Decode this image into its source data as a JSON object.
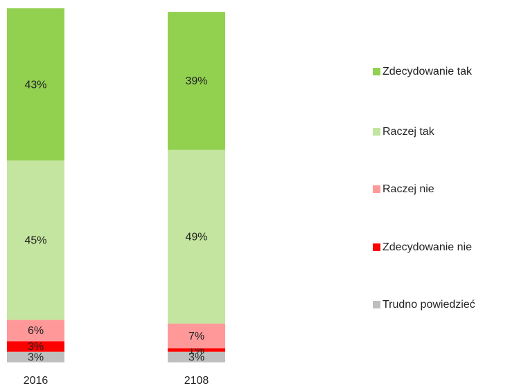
{
  "chart_data": {
    "type": "stacked_bar",
    "categories": [
      "2016",
      "2108"
    ],
    "series": [
      {
        "name": "Zdecydowanie tak",
        "color": "#92d050",
        "values": [
          43,
          39
        ],
        "value_labels": [
          "43%",
          "39%"
        ]
      },
      {
        "name": "Raczej tak",
        "color": "#c4e59f",
        "values": [
          45,
          49
        ],
        "value_labels": [
          "45%",
          "49%"
        ]
      },
      {
        "name": "Raczej nie",
        "color": "#ff9999",
        "values": [
          6,
          7
        ],
        "value_labels": [
          "6%",
          "7%"
        ]
      },
      {
        "name": "Zdecydowanie nie",
        "color": "#ff0000",
        "values": [
          3,
          1
        ],
        "value_labels": [
          "3%",
          "1%"
        ]
      },
      {
        "name": "Trudno powiedzieć",
        "color": "#bfbfbf",
        "values": [
          3,
          3
        ],
        "value_labels": [
          "3%",
          "3%"
        ]
      }
    ]
  }
}
